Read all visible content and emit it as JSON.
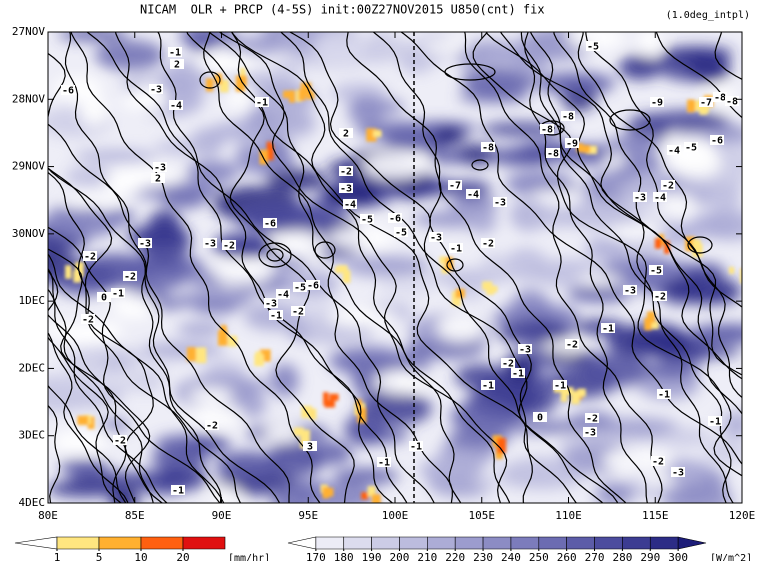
{
  "chart_data": {
    "type": "hovmoller",
    "title": "NICAM  OLR + PRCP (4-5S) init:00Z27NOV2015 U850(cnt) fix",
    "subtitle": "(1.0deg_intpl)",
    "xlim": [
      80,
      120
    ],
    "xticks": [
      {
        "value": 80,
        "label": "80E"
      },
      {
        "value": 85,
        "label": "85E"
      },
      {
        "value": 90,
        "label": "90E"
      },
      {
        "value": 95,
        "label": "95E"
      },
      {
        "value": 100,
        "label": "100E"
      },
      {
        "value": 105,
        "label": "105E"
      },
      {
        "value": 110,
        "label": "110E"
      },
      {
        "value": 115,
        "label": "115E"
      },
      {
        "value": 120,
        "label": "120E"
      }
    ],
    "y_categories": [
      "27NOV",
      "28NOV",
      "29NOV",
      "30NOV",
      "1DEC",
      "2DEC",
      "3DEC",
      "4DEC"
    ],
    "contour_labels": [
      -1,
      2,
      -5,
      -6,
      -3,
      -4,
      -1,
      2,
      -7,
      -8,
      -9,
      -8,
      -8,
      -8,
      -9,
      -8,
      -8,
      -3,
      2,
      -2,
      -3,
      -4,
      -5,
      -6,
      -5,
      -3,
      -1,
      -2,
      -7,
      -4,
      -3,
      -3,
      -2,
      -6,
      -3,
      -2,
      -2,
      -1,
      0,
      -2,
      -3,
      -4,
      -5,
      -6,
      -1,
      -2,
      -3,
      -5,
      -2,
      -1,
      -2,
      -3,
      -2,
      -1,
      -1,
      -1,
      -1,
      -2,
      -3,
      -1,
      -2,
      -3,
      -2,
      -2,
      3,
      -1,
      -1,
      -1,
      -3,
      -2,
      -4,
      -5,
      -6,
      -4,
      0
    ],
    "colorbars": [
      {
        "unit": "[mm/hr]",
        "ticks": [
          1,
          5,
          10,
          20
        ],
        "colors": [
          "#ffffff",
          "#ffe680",
          "#ffb030",
          "#ff6010",
          "#e01010"
        ]
      },
      {
        "unit": "[W/m^2]",
        "ticks": [
          170,
          180,
          190,
          200,
          210,
          220,
          230,
          240,
          250,
          260,
          270,
          280,
          290,
          300
        ],
        "colors": [
          "#ffffff",
          "#ececf6",
          "#dcdcee",
          "#ccccE6",
          "#bcbcde",
          "#acacd6",
          "#9c9cce",
          "#8c8cc4",
          "#7c7cbc",
          "#6c6cb2",
          "#5c5ca8",
          "#4c4c9e",
          "#3c3c92",
          "#2c2c86",
          "#1c1c78"
        ]
      }
    ]
  }
}
